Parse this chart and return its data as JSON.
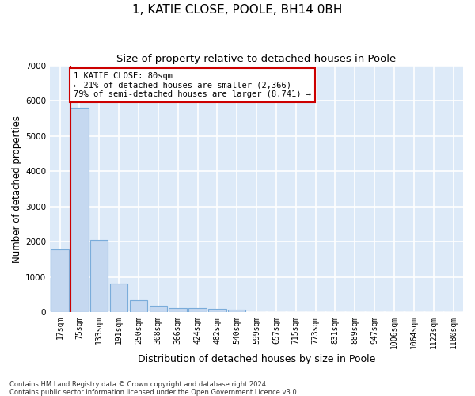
{
  "title": "1, KATIE CLOSE, POOLE, BH14 0BH",
  "subtitle": "Size of property relative to detached houses in Poole",
  "xlabel": "Distribution of detached houses by size in Poole",
  "ylabel": "Number of detached properties",
  "footnote1": "Contains HM Land Registry data © Crown copyright and database right 2024.",
  "footnote2": "Contains public sector information licensed under the Open Government Licence v3.0.",
  "bar_labels": [
    "17sqm",
    "75sqm",
    "133sqm",
    "191sqm",
    "250sqm",
    "308sqm",
    "366sqm",
    "424sqm",
    "482sqm",
    "540sqm",
    "599sqm",
    "657sqm",
    "715sqm",
    "773sqm",
    "831sqm",
    "889sqm",
    "947sqm",
    "1006sqm",
    "1064sqm",
    "1122sqm",
    "1180sqm"
  ],
  "bar_values": [
    1780,
    5800,
    2060,
    820,
    340,
    185,
    120,
    105,
    95,
    70,
    0,
    0,
    0,
    0,
    0,
    0,
    0,
    0,
    0,
    0,
    0
  ],
  "bar_color": "#c5d8f0",
  "bar_edge_color": "#7aacda",
  "highlight_bar_index": 1,
  "highlight_color": "#cc0000",
  "annotation_line1": "1 KATIE CLOSE: 80sqm",
  "annotation_line2": "← 21% of detached houses are smaller (2,366)",
  "annotation_line3": "79% of semi-detached houses are larger (8,741) →",
  "ylim": [
    0,
    7000
  ],
  "yticks": [
    0,
    1000,
    2000,
    3000,
    4000,
    5000,
    6000,
    7000
  ],
  "background_color": "#ddeaf8",
  "grid_color": "#ffffff",
  "title_fontsize": 11,
  "subtitle_fontsize": 9.5,
  "xlabel_fontsize": 9,
  "ylabel_fontsize": 8.5,
  "tick_fontsize": 7,
  "annot_fontsize": 7.5,
  "footnote_fontsize": 6
}
